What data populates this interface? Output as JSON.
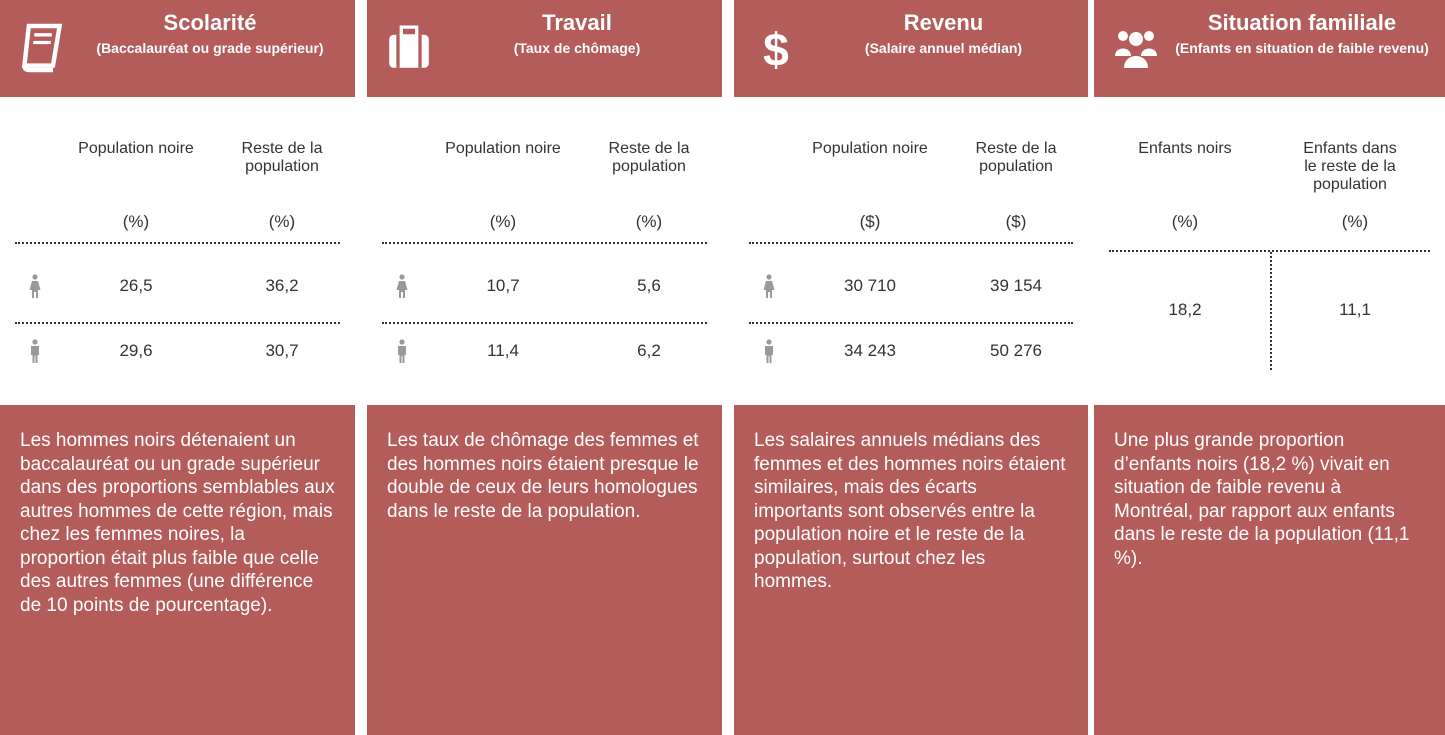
{
  "panels": [
    {
      "title": "Scolarité",
      "subtitle": "(Baccalauréat ou grade supérieur)",
      "columns": [
        "Population noire",
        "Reste de la population"
      ],
      "units": [
        "(%)",
        "(%)"
      ],
      "rows": [
        [
          "26,5",
          "36,2"
        ],
        [
          "29,6",
          "30,7"
        ]
      ],
      "text": "Les hommes noirs détenaient un baccalauréat ou un grade supérieur dans des proportions semblables aux autres hommes de cette région, mais chez les femmes noires, la proportion était plus faible que celle des autres femmes (une différence de 10 points de pourcentage)."
    },
    {
      "title": "Travail",
      "subtitle": "(Taux de chômage)",
      "columns": [
        "Population noire",
        "Reste de la population"
      ],
      "units": [
        "(%)",
        "(%)"
      ],
      "rows": [
        [
          "10,7",
          "5,6"
        ],
        [
          "11,4",
          "6,2"
        ]
      ],
      "text": "Les taux de chômage des femmes et des hommes noirs étaient presque le double de ceux de leurs homologues dans le reste de la population."
    },
    {
      "title": "Revenu",
      "subtitle": "(Salaire annuel médian)",
      "columns": [
        "Population noire",
        "Reste de la population"
      ],
      "units": [
        "($)",
        "($)"
      ],
      "rows": [
        [
          "30 710",
          "39 154"
        ],
        [
          "34 243",
          "50 276"
        ]
      ],
      "text": "Les salaires annuels médians des femmes et des hommes noirs étaient similaires, mais des écarts importants sont observés entre la population noire et le reste de la population, surtout chez les hommes."
    },
    {
      "title": "Situation familiale",
      "subtitle": "(Enfants en situation de faible revenu)",
      "columns": [
        "Enfants noirs",
        "Enfants dans le reste de la population"
      ],
      "units": [
        "(%)",
        "(%)"
      ],
      "rows": [
        [
          "18,2",
          "11,1"
        ]
      ],
      "text": "Une plus grande proportion d’enfants noirs (18,2 %) vivait en situation de faible revenu à Montréal, par rapport aux enfants dans le reste de la population (11,1 %)."
    }
  ]
}
